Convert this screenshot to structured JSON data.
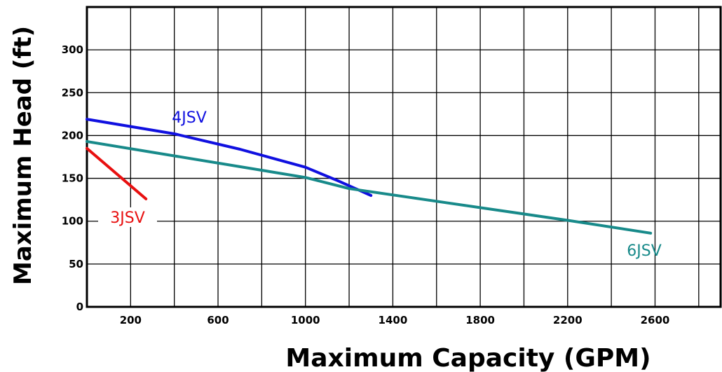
{
  "chart_data": {
    "type": "line",
    "xlabel": "Maximum Capacity (GPM)",
    "ylabel": "Maximum Head (ft)",
    "xlim": [
      0,
      2900
    ],
    "ylim": [
      0,
      350
    ],
    "x_ticks": [
      200,
      600,
      1000,
      1400,
      1800,
      2200,
      2600
    ],
    "y_ticks": [
      0,
      50,
      100,
      150,
      200,
      250,
      300
    ],
    "grid": true,
    "series": [
      {
        "name": "4JSV",
        "color": "#1010e0",
        "points": [
          [
            0,
            219
          ],
          [
            400,
            202
          ],
          [
            700,
            184
          ],
          [
            1000,
            163
          ],
          [
            1150,
            147
          ],
          [
            1300,
            130
          ]
        ]
      },
      {
        "name": "6JSV",
        "color": "#188a8a",
        "points": [
          [
            0,
            193
          ],
          [
            1000,
            151
          ],
          [
            1200,
            138
          ],
          [
            2200,
            101
          ],
          [
            2580,
            86
          ]
        ]
      },
      {
        "name": "3JSV",
        "color": "#e81010",
        "points": [
          [
            0,
            185
          ],
          [
            270,
            126
          ]
        ]
      }
    ]
  }
}
